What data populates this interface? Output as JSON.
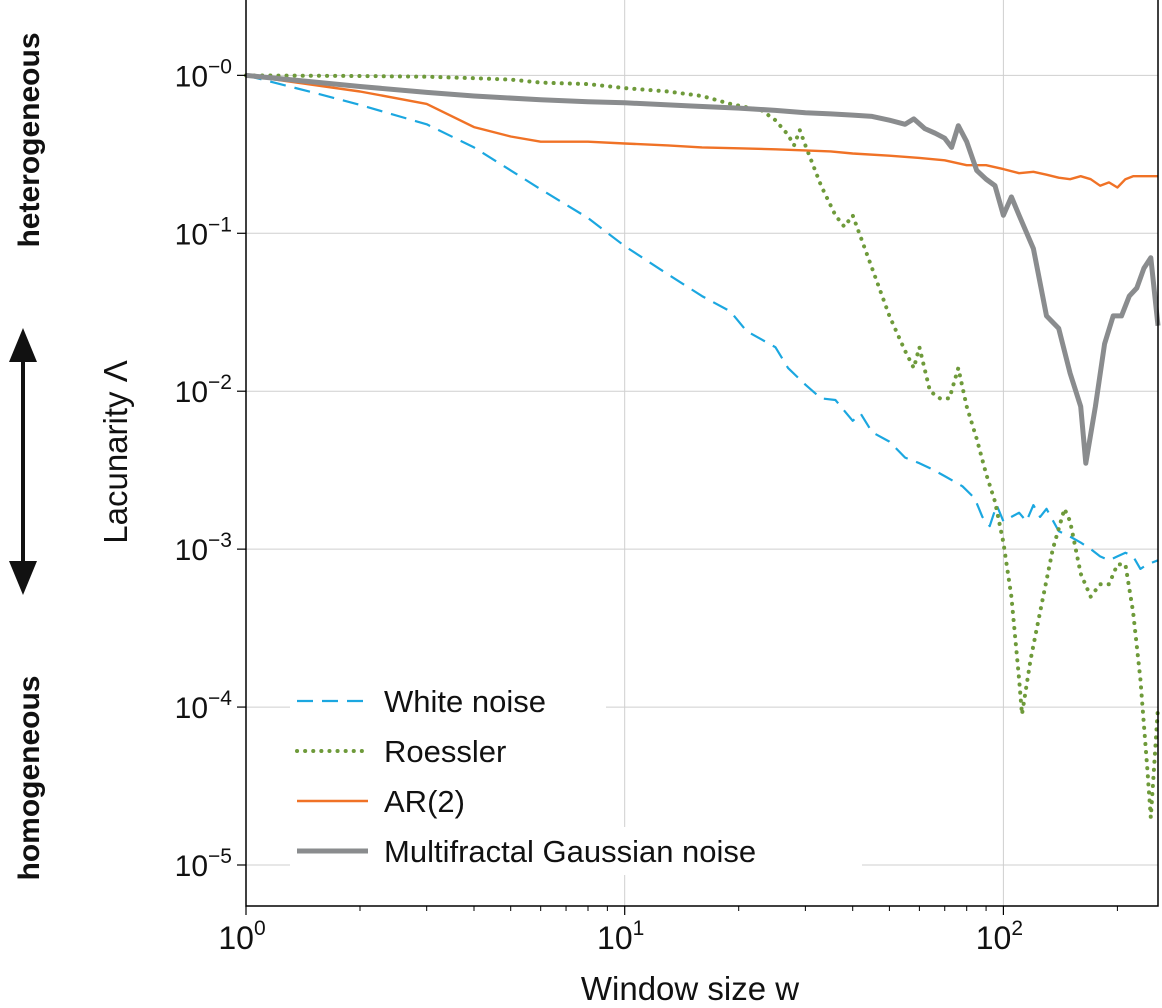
{
  "side_labels": {
    "top": "heterogeneous",
    "bottom": "homogeneous"
  },
  "chart_data": {
    "type": "line",
    "title": "",
    "xlabel": "Window size w",
    "ylabel": "Lacunarity Λ",
    "xscale": "log",
    "yscale": "log",
    "xlim": [
      1,
      256
    ],
    "ylim": [
      5.5e-06,
      3
    ],
    "x_ticks": [
      {
        "value": 1,
        "base": "10",
        "exp": "0"
      },
      {
        "value": 10,
        "base": "10",
        "exp": "1"
      },
      {
        "value": 100,
        "base": "10",
        "exp": "2"
      }
    ],
    "y_ticks": [
      {
        "value": 1,
        "base": "10",
        "exp": "−0"
      },
      {
        "value": 0.1,
        "base": "10",
        "exp": "−1"
      },
      {
        "value": 0.01,
        "base": "10",
        "exp": "−2"
      },
      {
        "value": 0.001,
        "base": "10",
        "exp": "−3"
      },
      {
        "value": 0.0001,
        "base": "10",
        "exp": "−4"
      },
      {
        "value": 1e-05,
        "base": "10",
        "exp": "−5"
      }
    ],
    "grid": true,
    "legend_position": "bottom-left",
    "series": [
      {
        "name": "White noise",
        "color": "#1ba7e0",
        "style": "dashed",
        "width": 2.2,
        "points": [
          [
            1,
            1.0
          ],
          [
            1.5,
            0.78
          ],
          [
            2,
            0.65
          ],
          [
            3,
            0.49
          ],
          [
            4,
            0.35
          ],
          [
            5,
            0.25
          ],
          [
            6,
            0.19
          ],
          [
            8,
            0.125
          ],
          [
            10,
            0.083
          ],
          [
            13,
            0.055
          ],
          [
            16,
            0.04
          ],
          [
            19,
            0.032
          ],
          [
            21,
            0.024
          ],
          [
            25,
            0.019
          ],
          [
            27,
            0.014
          ],
          [
            30,
            0.011
          ],
          [
            33,
            0.009
          ],
          [
            36,
            0.0088
          ],
          [
            40,
            0.0065
          ],
          [
            42,
            0.0072
          ],
          [
            45,
            0.0055
          ],
          [
            50,
            0.0048
          ],
          [
            55,
            0.0038
          ],
          [
            60,
            0.0035
          ],
          [
            65,
            0.0032
          ],
          [
            70,
            0.0029
          ],
          [
            78,
            0.0025
          ],
          [
            84,
            0.0021
          ],
          [
            88,
            0.0016
          ],
          [
            92,
            0.0014
          ],
          [
            96,
            0.0019
          ],
          [
            100,
            0.0015
          ],
          [
            105,
            0.0016
          ],
          [
            110,
            0.0017
          ],
          [
            115,
            0.0015
          ],
          [
            120,
            0.0019
          ],
          [
            125,
            0.0016
          ],
          [
            130,
            0.0018
          ],
          [
            140,
            0.0013
          ],
          [
            150,
            0.0012
          ],
          [
            160,
            0.0011
          ],
          [
            170,
            0.001
          ],
          [
            180,
            0.0009
          ],
          [
            190,
            0.00085
          ],
          [
            200,
            0.0009
          ],
          [
            210,
            0.00095
          ],
          [
            220,
            0.0009
          ],
          [
            230,
            0.00075
          ],
          [
            240,
            0.0008
          ],
          [
            256,
            0.00085
          ]
        ]
      },
      {
        "name": "Roessler",
        "color": "#6e9a3a",
        "style": "dotted",
        "width": 4,
        "points": [
          [
            1,
            1.0
          ],
          [
            2,
            0.99
          ],
          [
            3,
            0.98
          ],
          [
            4,
            0.96
          ],
          [
            5,
            0.94
          ],
          [
            6,
            0.9
          ],
          [
            8,
            0.88
          ],
          [
            10,
            0.83
          ],
          [
            13,
            0.79
          ],
          [
            16,
            0.74
          ],
          [
            19,
            0.66
          ],
          [
            23,
            0.6
          ],
          [
            25,
            0.52
          ],
          [
            27,
            0.42
          ],
          [
            28,
            0.36
          ],
          [
            29,
            0.45
          ],
          [
            30,
            0.36
          ],
          [
            33,
            0.2
          ],
          [
            36,
            0.13
          ],
          [
            38,
            0.11
          ],
          [
            40,
            0.13
          ],
          [
            45,
            0.06
          ],
          [
            50,
            0.03
          ],
          [
            55,
            0.018
          ],
          [
            58,
            0.014
          ],
          [
            60,
            0.019
          ],
          [
            64,
            0.01
          ],
          [
            68,
            0.009
          ],
          [
            72,
            0.009
          ],
          [
            76,
            0.014
          ],
          [
            80,
            0.008
          ],
          [
            85,
            0.005
          ],
          [
            90,
            0.003
          ],
          [
            95,
            0.002
          ],
          [
            100,
            0.0011
          ],
          [
            105,
            0.0005
          ],
          [
            110,
            0.00015
          ],
          [
            112,
            9e-05
          ],
          [
            118,
            0.0002
          ],
          [
            125,
            0.0004
          ],
          [
            135,
            0.001
          ],
          [
            145,
            0.0018
          ],
          [
            150,
            0.0015
          ],
          [
            160,
            0.0007
          ],
          [
            170,
            0.0005
          ],
          [
            180,
            0.0006
          ],
          [
            190,
            0.0006
          ],
          [
            200,
            0.0008
          ],
          [
            210,
            0.0008
          ],
          [
            220,
            0.0004
          ],
          [
            230,
            0.00015
          ],
          [
            240,
            4e-05
          ],
          [
            245,
            2e-05
          ],
          [
            256,
            0.0001
          ]
        ]
      },
      {
        "name": "AR(2)",
        "color": "#f07226",
        "style": "solid",
        "width": 2.4,
        "points": [
          [
            1,
            1.0
          ],
          [
            2,
            0.79
          ],
          [
            3,
            0.66
          ],
          [
            4,
            0.47
          ],
          [
            5,
            0.41
          ],
          [
            6,
            0.38
          ],
          [
            8,
            0.38
          ],
          [
            10,
            0.37
          ],
          [
            13,
            0.36
          ],
          [
            16,
            0.35
          ],
          [
            20,
            0.345
          ],
          [
            25,
            0.34
          ],
          [
            30,
            0.335
          ],
          [
            35,
            0.33
          ],
          [
            40,
            0.32
          ],
          [
            50,
            0.31
          ],
          [
            60,
            0.3
          ],
          [
            70,
            0.29
          ],
          [
            80,
            0.27
          ],
          [
            90,
            0.27
          ],
          [
            100,
            0.255
          ],
          [
            110,
            0.24
          ],
          [
            120,
            0.245
          ],
          [
            130,
            0.235
          ],
          [
            140,
            0.225
          ],
          [
            150,
            0.22
          ],
          [
            160,
            0.23
          ],
          [
            170,
            0.22
          ],
          [
            180,
            0.2
          ],
          [
            190,
            0.21
          ],
          [
            200,
            0.195
          ],
          [
            210,
            0.22
          ],
          [
            220,
            0.23
          ],
          [
            230,
            0.23
          ],
          [
            256,
            0.23
          ]
        ]
      },
      {
        "name": "Multifractal Gaussian noise",
        "color": "#8a8c8e",
        "style": "solid",
        "width": 5,
        "points": [
          [
            1,
            1.0
          ],
          [
            2,
            0.85
          ],
          [
            3,
            0.78
          ],
          [
            4,
            0.74
          ],
          [
            6,
            0.7
          ],
          [
            8,
            0.68
          ],
          [
            10,
            0.67
          ],
          [
            15,
            0.64
          ],
          [
            20,
            0.62
          ],
          [
            25,
            0.6
          ],
          [
            30,
            0.58
          ],
          [
            35,
            0.57
          ],
          [
            40,
            0.56
          ],
          [
            45,
            0.55
          ],
          [
            50,
            0.52
          ],
          [
            55,
            0.49
          ],
          [
            58,
            0.53
          ],
          [
            62,
            0.46
          ],
          [
            66,
            0.43
          ],
          [
            70,
            0.4
          ],
          [
            73,
            0.35
          ],
          [
            76,
            0.48
          ],
          [
            80,
            0.38
          ],
          [
            85,
            0.25
          ],
          [
            90,
            0.22
          ],
          [
            95,
            0.2
          ],
          [
            100,
            0.13
          ],
          [
            105,
            0.17
          ],
          [
            110,
            0.13
          ],
          [
            120,
            0.08
          ],
          [
            130,
            0.03
          ],
          [
            140,
            0.025
          ],
          [
            150,
            0.013
          ],
          [
            160,
            0.008
          ],
          [
            165,
            0.0035
          ],
          [
            175,
            0.008
          ],
          [
            185,
            0.02
          ],
          [
            195,
            0.03
          ],
          [
            205,
            0.03
          ],
          [
            215,
            0.04
          ],
          [
            225,
            0.045
          ],
          [
            235,
            0.06
          ],
          [
            245,
            0.07
          ],
          [
            256,
            0.026
          ]
        ]
      }
    ]
  }
}
